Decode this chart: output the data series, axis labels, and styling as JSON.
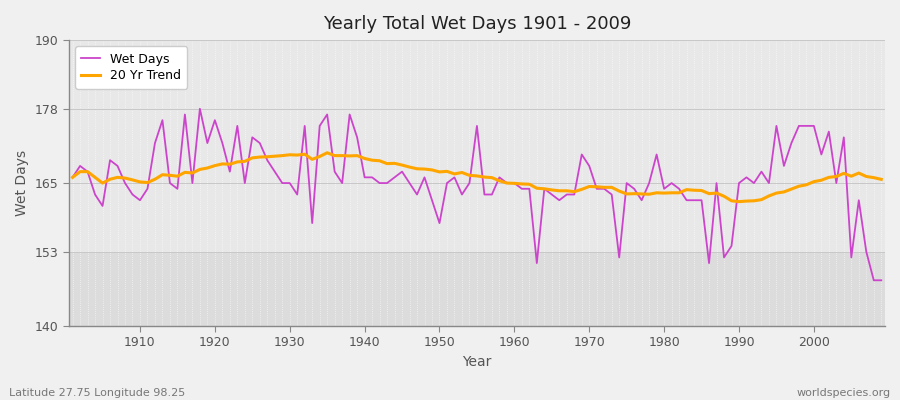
{
  "title": "Yearly Total Wet Days 1901 - 2009",
  "xlabel": "Year",
  "ylabel": "Wet Days",
  "footnote_left": "Latitude 27.75 Longitude 98.25",
  "footnote_right": "worldspecies.org",
  "ylim": [
    140,
    190
  ],
  "yticks": [
    140,
    153,
    165,
    178,
    190
  ],
  "line_color": "#CC44CC",
  "trend_color": "#FFA500",
  "fig_bg_color": "#F0F0F0",
  "plot_bg_color": "#E8E8E8",
  "lower_band_color": "#DCDCDC",
  "years": [
    1901,
    1902,
    1903,
    1904,
    1905,
    1906,
    1907,
    1908,
    1909,
    1910,
    1911,
    1912,
    1913,
    1914,
    1915,
    1916,
    1917,
    1918,
    1919,
    1920,
    1921,
    1922,
    1923,
    1924,
    1925,
    1926,
    1927,
    1928,
    1929,
    1930,
    1931,
    1932,
    1933,
    1934,
    1935,
    1936,
    1937,
    1938,
    1939,
    1940,
    1941,
    1942,
    1943,
    1944,
    1945,
    1946,
    1947,
    1948,
    1949,
    1950,
    1951,
    1952,
    1953,
    1954,
    1955,
    1956,
    1957,
    1958,
    1959,
    1960,
    1961,
    1962,
    1963,
    1964,
    1965,
    1966,
    1967,
    1968,
    1969,
    1970,
    1971,
    1972,
    1973,
    1974,
    1975,
    1976,
    1977,
    1978,
    1979,
    1980,
    1981,
    1982,
    1983,
    1984,
    1985,
    1986,
    1987,
    1988,
    1989,
    1990,
    1991,
    1992,
    1993,
    1994,
    1995,
    1996,
    1997,
    1998,
    1999,
    2000,
    2001,
    2002,
    2003,
    2004,
    2005,
    2006,
    2007,
    2008,
    2009
  ],
  "wet_days": [
    166,
    168,
    167,
    163,
    161,
    169,
    168,
    165,
    163,
    162,
    164,
    172,
    176,
    165,
    164,
    177,
    165,
    178,
    172,
    176,
    172,
    167,
    175,
    165,
    173,
    172,
    169,
    167,
    165,
    165,
    163,
    175,
    158,
    175,
    177,
    167,
    165,
    177,
    173,
    166,
    166,
    165,
    165,
    166,
    167,
    165,
    163,
    166,
    162,
    158,
    165,
    166,
    163,
    165,
    175,
    163,
    163,
    166,
    165,
    165,
    164,
    164,
    151,
    164,
    163,
    162,
    163,
    163,
    170,
    168,
    164,
    164,
    163,
    152,
    165,
    164,
    162,
    165,
    170,
    164,
    165,
    164,
    162,
    162,
    162,
    151,
    165,
    152,
    154,
    165,
    166,
    165,
    167,
    165,
    175,
    168,
    172,
    175,
    175,
    175,
    170,
    174,
    165,
    173,
    152,
    162,
    153,
    148,
    148
  ],
  "xtick_years": [
    1910,
    1920,
    1930,
    1940,
    1950,
    1960,
    1970,
    1980,
    1990,
    2000
  ]
}
